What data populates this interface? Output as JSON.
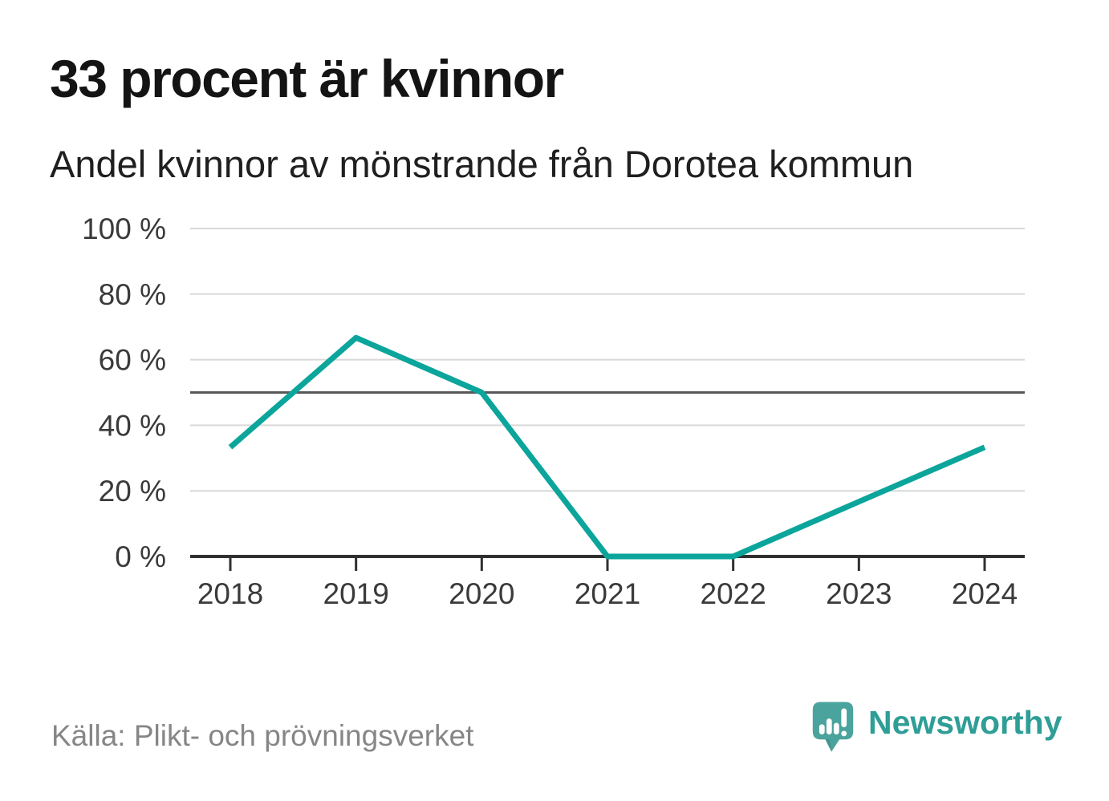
{
  "title": "33 procent är kvinnor",
  "subtitle": "Andel kvinnor av mönstrande från Dorotea kommun",
  "source": "Källa: Plikt- och prövningsverket",
  "branding": {
    "wordmark": "Newsworthy",
    "logo_icon": "newsworthy-speech-bubble-bar-chart-icon"
  },
  "colors": {
    "series_line": "#0ba59b",
    "gridline": "#d9d9d9",
    "reference_line": "#57585a",
    "axis": "#303030",
    "tick_label": "#3a3a3a",
    "title_text": "#141414",
    "source_text": "#868686",
    "logo_teal": "#4aa39c",
    "wordmark_teal": "#2e9e96"
  },
  "chart_data": {
    "type": "line",
    "title": "33 procent är kvinnor",
    "subtitle": "Andel kvinnor av mönstrande från Dorotea kommun",
    "x": [
      2018,
      2019,
      2020,
      2021,
      2022,
      2023,
      2024
    ],
    "series": [
      {
        "name": "Andel kvinnor av mönstrande",
        "values": [
          33.3,
          66.7,
          50,
          0,
          0,
          16.7,
          33.3
        ]
      }
    ],
    "xlabel": "",
    "ylabel": "",
    "ylim": [
      0,
      100
    ],
    "yticks": [
      0,
      20,
      40,
      60,
      80,
      100
    ],
    "ytick_suffix": " %",
    "reference_line_y": 50,
    "grid": true,
    "legend": "none"
  }
}
